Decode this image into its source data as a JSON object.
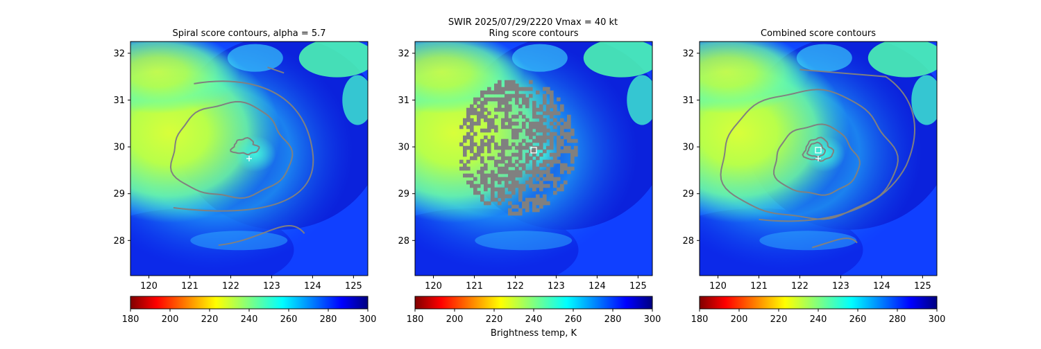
{
  "figure": {
    "suptitle": "SWIR  2025/07/29/2220    Vmax = 40 kt",
    "colorbar_label": "Brightness temp, K"
  },
  "chart_data": [
    {
      "type": "heatmap",
      "title": "Spiral score contours, alpha =  5.7",
      "xlim": [
        119.55,
        125.35
      ],
      "ylim": [
        27.25,
        32.25
      ],
      "xticks": [
        "120",
        "121",
        "122",
        "123",
        "124",
        "125"
      ],
      "yticks": [
        "28",
        "29",
        "30",
        "31",
        "32"
      ],
      "colorbar": {
        "range": [
          180,
          300
        ],
        "ticks": [
          "180",
          "200",
          "220",
          "240",
          "260",
          "280",
          "300"
        ],
        "colormap": "jet_r"
      },
      "markers": [
        {
          "kind": "plus",
          "x": 122.45,
          "y": 29.75
        }
      ],
      "contour_color": "#808080"
    },
    {
      "type": "heatmap",
      "title": "Ring score contours",
      "xlim": [
        119.55,
        125.35
      ],
      "ylim": [
        27.25,
        32.25
      ],
      "xticks": [
        "120",
        "121",
        "122",
        "123",
        "124",
        "125"
      ],
      "yticks": [
        "28",
        "29",
        "30",
        "31",
        "32"
      ],
      "colorbar": {
        "range": [
          180,
          300
        ],
        "ticks": [
          "180",
          "200",
          "220",
          "240",
          "260",
          "280",
          "300"
        ],
        "colormap": "jet_r"
      },
      "markers": [
        {
          "kind": "square",
          "x": 122.45,
          "y": 29.93
        }
      ],
      "ring_region": {
        "center_x": 122.0,
        "center_y": 30.05,
        "radius_deg": 1.45
      },
      "contour_color": "#808080"
    },
    {
      "type": "heatmap",
      "title": "Combined score contours",
      "xlim": [
        119.55,
        125.35
      ],
      "ylim": [
        27.25,
        32.25
      ],
      "xticks": [
        "120",
        "121",
        "122",
        "123",
        "124",
        "125"
      ],
      "yticks": [
        "28",
        "29",
        "30",
        "31",
        "32"
      ],
      "colorbar": {
        "range": [
          180,
          300
        ],
        "ticks": [
          "180",
          "200",
          "220",
          "240",
          "260",
          "280",
          "300"
        ],
        "colormap": "jet_r"
      },
      "markers": [
        {
          "kind": "square",
          "x": 122.45,
          "y": 29.93
        },
        {
          "kind": "plus",
          "x": 122.45,
          "y": 29.75
        }
      ],
      "contour_color": "#808080"
    }
  ]
}
